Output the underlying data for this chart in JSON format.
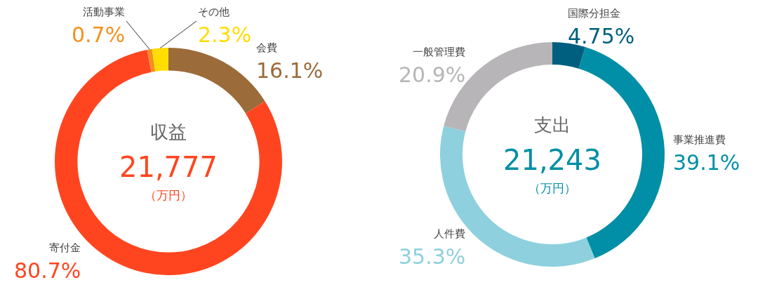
{
  "chart_data": [
    {
      "type": "donut",
      "title": "収益",
      "annotations": [
        "21,777",
        "（万円）"
      ],
      "legend": false,
      "categories": [
        "会費",
        "寄付金",
        "活動事業",
        "その他"
      ],
      "values": [
        16.1,
        80.7,
        0.7,
        2.3
      ],
      "value_labels": [
        "16.1%",
        "80.7%",
        "0.7%",
        "2.3%"
      ],
      "colors": [
        "#9c6b3a",
        "#ff4520",
        "#f5901e",
        "#ffdd00"
      ]
    },
    {
      "type": "donut",
      "title": "支出",
      "annotations": [
        "21,243",
        "（万円）"
      ],
      "legend": false,
      "categories": [
        "国際分担金",
        "事業推進費",
        "人件費",
        "一般管理費"
      ],
      "values": [
        4.75,
        39.1,
        35.3,
        20.9
      ],
      "value_labels": [
        "4.75%",
        "39.1%",
        "35.3%",
        "20.9%"
      ],
      "colors": [
        "#005f7f",
        "#008fa6",
        "#8ed0de",
        "#b7b5b7"
      ]
    }
  ]
}
